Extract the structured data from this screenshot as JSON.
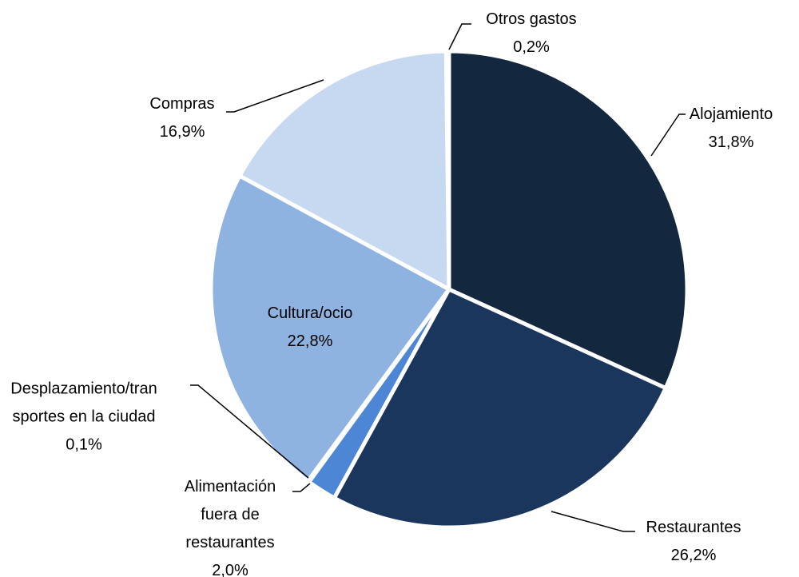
{
  "chart_data": {
    "type": "pie",
    "categories": [
      "Alojamiento",
      "Restaurantes",
      "Alimentación fuera de restaurantes",
      "Desplazamiento/transportes en la ciudad",
      "Cultura/ocio",
      "Compras",
      "Otros gastos"
    ],
    "values": [
      31.8,
      26.2,
      2.0,
      0.1,
      22.8,
      16.9,
      0.2
    ],
    "value_labels": [
      "31,8%",
      "26,2%",
      "2,0%",
      "0,1%",
      "22,8%",
      "16,9%",
      "0,2%"
    ],
    "colors": [
      "#13273f",
      "#1b365d",
      "#4e86d6",
      "#8b1c24",
      "#8fb3e1",
      "#c6d9f1",
      "#c9bcae"
    ]
  }
}
